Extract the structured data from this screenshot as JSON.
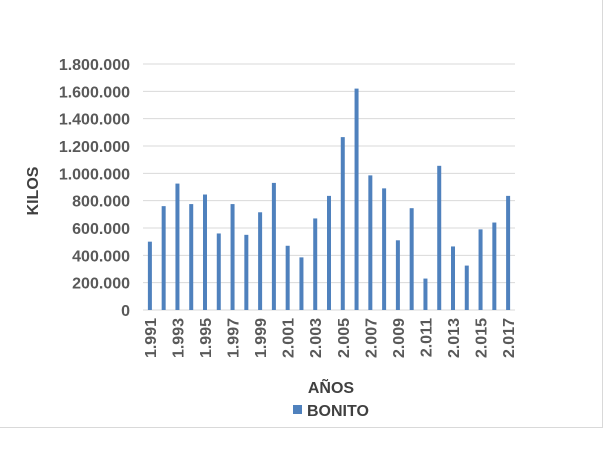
{
  "chart_data": {
    "type": "bar",
    "title": "",
    "xlabel": "AÑOS",
    "ylabel": "KILOS",
    "ylim": [
      0,
      1800000
    ],
    "y_ticks": [
      0,
      200000,
      400000,
      600000,
      800000,
      1000000,
      1200000,
      1400000,
      1600000,
      1800000
    ],
    "y_tick_labels": [
      "0",
      "200.000",
      "400.000",
      "600.000",
      "800.000",
      "1.000.000",
      "1.200.000",
      "1.400.000",
      "1.600.000",
      "1.800.000"
    ],
    "grid": true,
    "legend_position": "bottom",
    "categories": [
      "1.991",
      "1.992",
      "1.993",
      "1.994",
      "1.995",
      "1.996",
      "1.997",
      "1.998",
      "1.999",
      "2.000",
      "2.001",
      "2.002",
      "2.003",
      "2.004",
      "2.005",
      "2.006",
      "2.007",
      "2.008",
      "2.009",
      "2.010",
      "2.011",
      "2.012",
      "2.013",
      "2.014",
      "2.015",
      "2.016",
      "2.017"
    ],
    "x_tick_labels": [
      "1.991",
      "",
      "1.993",
      "",
      "1.995",
      "",
      "1.997",
      "",
      "1.999",
      "",
      "2.001",
      "",
      "2.003",
      "",
      "2.005",
      "",
      "2.007",
      "",
      "2.009",
      "",
      "2.011",
      "",
      "2.013",
      "",
      "2.015",
      "",
      "2.017"
    ],
    "series": [
      {
        "name": "BONITO",
        "color": "#4f81bd",
        "values": [
          500000,
          760000,
          925000,
          775000,
          845000,
          560000,
          775000,
          550000,
          715000,
          930000,
          470000,
          385000,
          670000,
          835000,
          1265000,
          1620000,
          985000,
          890000,
          510000,
          745000,
          230000,
          1055000,
          465000,
          325000,
          590000,
          640000,
          835000
        ]
      }
    ]
  }
}
